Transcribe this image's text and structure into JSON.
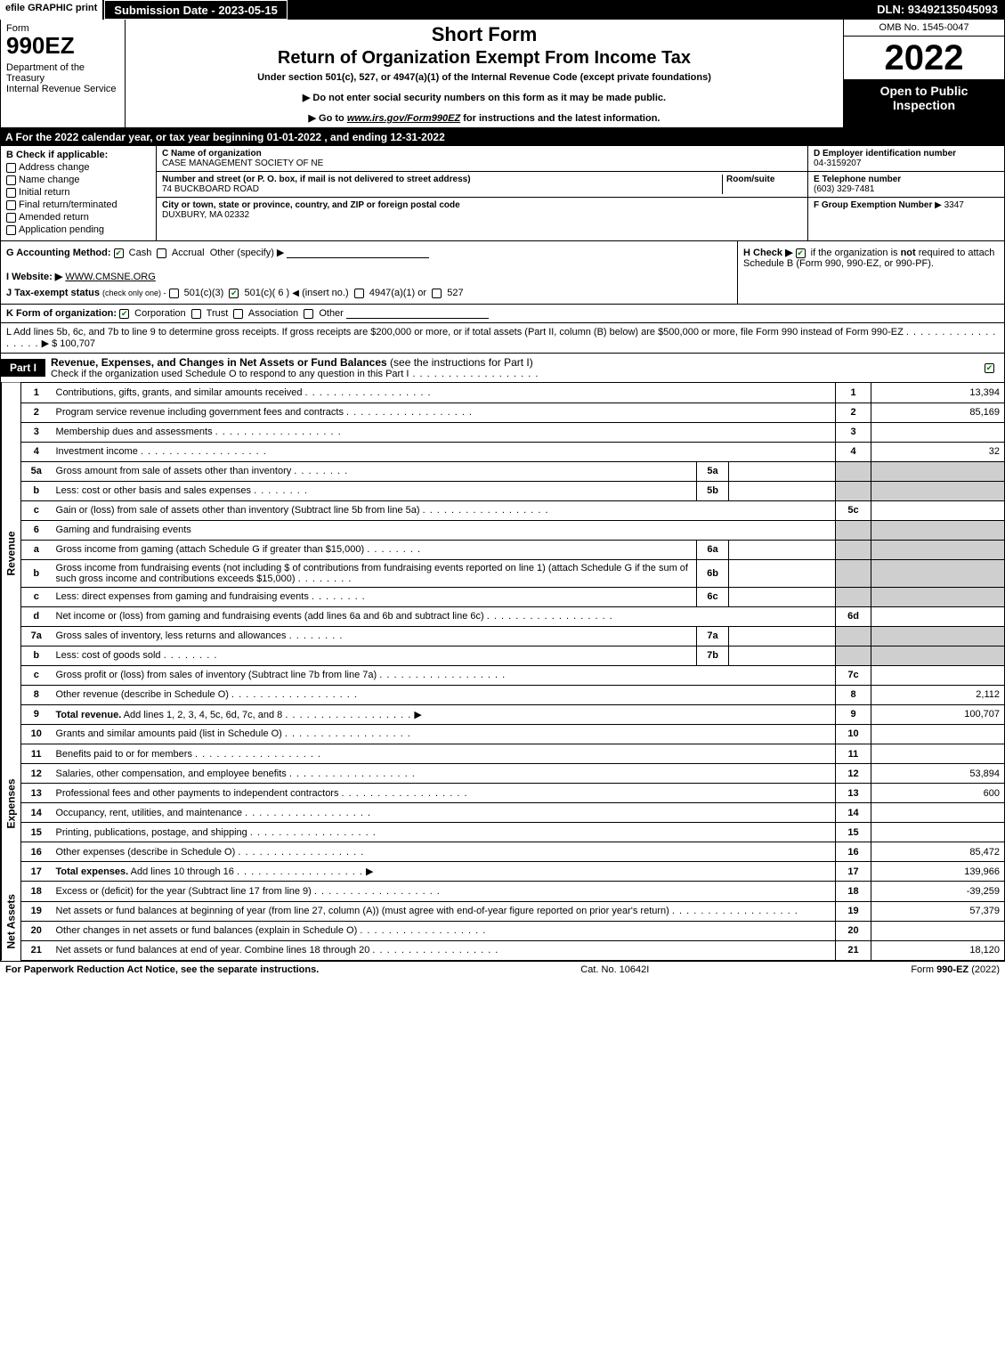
{
  "topbar": {
    "efile": "efile GRAPHIC print",
    "submission": "Submission Date - 2023-05-15",
    "dln": "DLN: 93492135045093"
  },
  "header": {
    "form_label": "Form",
    "form_num": "990EZ",
    "dept": "Department of the Treasury\nInternal Revenue Service",
    "title1": "Short Form",
    "title2": "Return of Organization Exempt From Income Tax",
    "sub": "Under section 501(c), 527, or 4947(a)(1) of the Internal Revenue Code (except private foundations)",
    "instruct1_pre": "▶ Do not enter social security numbers on this form as it may be made public.",
    "instruct2_pre": "▶ Go to ",
    "instruct2_link": "www.irs.gov/Form990EZ",
    "instruct2_post": " for instructions and the latest information.",
    "omb": "OMB No. 1545-0047",
    "year": "2022",
    "inspection": "Open to Public Inspection"
  },
  "row_a": "A  For the 2022 calendar year, or tax year beginning 01-01-2022 , and ending 12-31-2022",
  "box_b": {
    "title": "B  Check if applicable:",
    "items": [
      "Address change",
      "Name change",
      "Initial return",
      "Final return/terminated",
      "Amended return",
      "Application pending"
    ]
  },
  "box_c": {
    "name_label": "C Name of organization",
    "name": "CASE MANAGEMENT SOCIETY OF NE",
    "street_label": "Number and street (or P. O. box, if mail is not delivered to street address)",
    "room_label": "Room/suite",
    "street": "74 BUCKBOARD ROAD",
    "city_label": "City or town, state or province, country, and ZIP or foreign postal code",
    "city": "DUXBURY, MA  02332"
  },
  "box_d": {
    "ein_label": "D Employer identification number",
    "ein": "04-3159207",
    "tel_label": "E Telephone number",
    "tel": "(603) 329-7481",
    "group_label": "F Group Exemption Number",
    "group": "▶ 3347"
  },
  "row_g": {
    "label": "G Accounting Method:",
    "cash": "Cash",
    "accrual": "Accrual",
    "other": "Other (specify) ▶"
  },
  "row_h": {
    "text1": "H  Check ▶",
    "text2": "if the organization is ",
    "not": "not",
    "text3": "required to attach Schedule B (Form 990, 990-EZ, or 990-PF)."
  },
  "row_i": {
    "label": "I Website: ▶",
    "value": "WWW.CMSNE.ORG"
  },
  "row_j": {
    "label": "J Tax-exempt status",
    "sub": "(check only one) -",
    "o1": "501(c)(3)",
    "o2": "501(c)( 6 )",
    "o2_post": "(insert no.)",
    "o3": "4947(a)(1) or",
    "o4": "527"
  },
  "row_k": {
    "label": "K Form of organization:",
    "o1": "Corporation",
    "o2": "Trust",
    "o3": "Association",
    "o4": "Other"
  },
  "row_l": {
    "text": "L Add lines 5b, 6c, and 7b to line 9 to determine gross receipts. If gross receipts are $200,000 or more, or if total assets (Part II, column (B) below) are $500,000 or more, file Form 990 instead of Form 990-EZ",
    "amount_label": "▶ $",
    "amount": "100,707"
  },
  "part1": {
    "tab": "Part I",
    "title": "Revenue, Expenses, and Changes in Net Assets or Fund Balances",
    "title_sub": "(see the instructions for Part I)",
    "check_text": "Check if the organization used Schedule O to respond to any question in this Part I"
  },
  "revenue": {
    "side": "Revenue",
    "lines": [
      {
        "n": "1",
        "desc": "Contributions, gifts, grants, and similar amounts received",
        "ref": "1",
        "amt": "13,394"
      },
      {
        "n": "2",
        "desc": "Program service revenue including government fees and contracts",
        "ref": "2",
        "amt": "85,169"
      },
      {
        "n": "3",
        "desc": "Membership dues and assessments",
        "ref": "3",
        "amt": ""
      },
      {
        "n": "4",
        "desc": "Investment income",
        "ref": "4",
        "amt": "32"
      },
      {
        "n": "5a",
        "desc": "Gross amount from sale of assets other than inventory",
        "il": "5a",
        "ilv": ""
      },
      {
        "n": "b",
        "desc": "Less: cost or other basis and sales expenses",
        "il": "5b",
        "ilv": ""
      },
      {
        "n": "c",
        "desc": "Gain or (loss) from sale of assets other than inventory (Subtract line 5b from line 5a)",
        "ref": "5c",
        "amt": ""
      },
      {
        "n": "6",
        "desc": "Gaming and fundraising events"
      },
      {
        "n": "a",
        "desc": "Gross income from gaming (attach Schedule G if greater than $15,000)",
        "il": "6a",
        "ilv": ""
      },
      {
        "n": "b",
        "desc": "Gross income from fundraising events (not including $                        of contributions from fundraising events reported on line 1) (attach Schedule G if the sum of such gross income and contributions exceeds $15,000)",
        "il": "6b",
        "ilv": ""
      },
      {
        "n": "c",
        "desc": "Less: direct expenses from gaming and fundraising events",
        "il": "6c",
        "ilv": ""
      },
      {
        "n": "d",
        "desc": "Net income or (loss) from gaming and fundraising events (add lines 6a and 6b and subtract line 6c)",
        "ref": "6d",
        "amt": ""
      },
      {
        "n": "7a",
        "desc": "Gross sales of inventory, less returns and allowances",
        "il": "7a",
        "ilv": ""
      },
      {
        "n": "b",
        "desc": "Less: cost of goods sold",
        "il": "7b",
        "ilv": ""
      },
      {
        "n": "c",
        "desc": "Gross profit or (loss) from sales of inventory (Subtract line 7b from line 7a)",
        "ref": "7c",
        "amt": ""
      },
      {
        "n": "8",
        "desc": "Other revenue (describe in Schedule O)",
        "ref": "8",
        "amt": "2,112"
      },
      {
        "n": "9",
        "desc": "Total revenue. Add lines 1, 2, 3, 4, 5c, 6d, 7c, and 8",
        "ref": "9",
        "amt": "100,707",
        "bold": true,
        "arrow": true
      }
    ]
  },
  "expenses": {
    "side": "Expenses",
    "lines": [
      {
        "n": "10",
        "desc": "Grants and similar amounts paid (list in Schedule O)",
        "ref": "10",
        "amt": ""
      },
      {
        "n": "11",
        "desc": "Benefits paid to or for members",
        "ref": "11",
        "amt": ""
      },
      {
        "n": "12",
        "desc": "Salaries, other compensation, and employee benefits",
        "ref": "12",
        "amt": "53,894"
      },
      {
        "n": "13",
        "desc": "Professional fees and other payments to independent contractors",
        "ref": "13",
        "amt": "600"
      },
      {
        "n": "14",
        "desc": "Occupancy, rent, utilities, and maintenance",
        "ref": "14",
        "amt": ""
      },
      {
        "n": "15",
        "desc": "Printing, publications, postage, and shipping",
        "ref": "15",
        "amt": ""
      },
      {
        "n": "16",
        "desc": "Other expenses (describe in Schedule O)",
        "ref": "16",
        "amt": "85,472"
      },
      {
        "n": "17",
        "desc": "Total expenses. Add lines 10 through 16",
        "ref": "17",
        "amt": "139,966",
        "bold": true,
        "arrow": true
      }
    ]
  },
  "netassets": {
    "side": "Net Assets",
    "lines": [
      {
        "n": "18",
        "desc": "Excess or (deficit) for the year (Subtract line 17 from line 9)",
        "ref": "18",
        "amt": "-39,259"
      },
      {
        "n": "19",
        "desc": "Net assets or fund balances at beginning of year (from line 27, column (A)) (must agree with end-of-year figure reported on prior year's return)",
        "ref": "19",
        "amt": "57,379"
      },
      {
        "n": "20",
        "desc": "Other changes in net assets or fund balances (explain in Schedule O)",
        "ref": "20",
        "amt": ""
      },
      {
        "n": "21",
        "desc": "Net assets or fund balances at end of year. Combine lines 18 through 20",
        "ref": "21",
        "amt": "18,120"
      }
    ]
  },
  "footer": {
    "left": "For Paperwork Reduction Act Notice, see the separate instructions.",
    "center": "Cat. No. 10642I",
    "right_pre": "Form ",
    "right_form": "990-EZ",
    "right_post": " (2022)"
  }
}
